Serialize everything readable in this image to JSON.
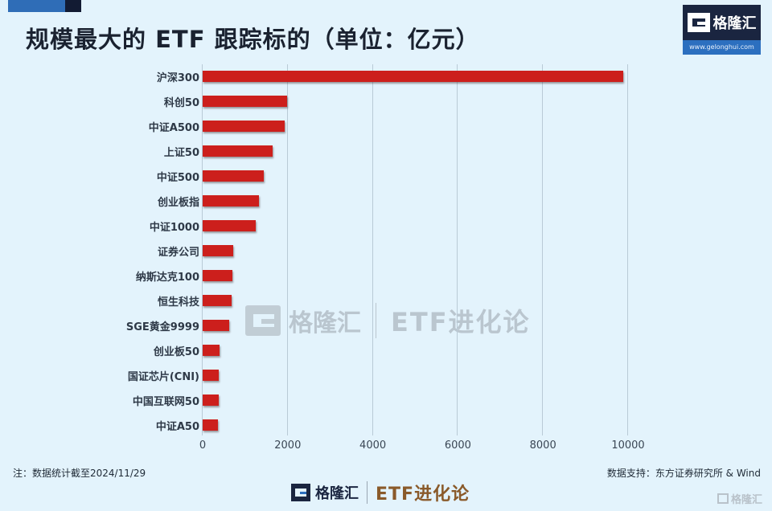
{
  "header": {
    "title": "规模最大的 ETF 跟踪标的（单位：亿元）",
    "logo_name": "格隆汇",
    "logo_url": "www.gelonghui.com"
  },
  "chart_data": {
    "type": "bar",
    "orientation": "horizontal",
    "title": "规模最大的 ETF 跟踪标的（单位：亿元）",
    "xlabel": "",
    "ylabel": "",
    "unit": "亿元",
    "xlim": [
      0,
      10000
    ],
    "xticks": [
      "0",
      "2000",
      "4000",
      "6000",
      "8000",
      "10000"
    ],
    "grid": true,
    "bar_color": "#cc1f1c",
    "categories": [
      "沪深300",
      "科创50",
      "中证A500",
      "上证50",
      "中证500",
      "创业板指",
      "中证1000",
      "证券公司",
      "纳斯达克100",
      "恒生科技",
      "SGE黄金9999",
      "创业板50",
      "国证芯片(CNI)",
      "中国互联网50",
      "中证A50"
    ],
    "values": [
      9890,
      1980,
      1920,
      1640,
      1430,
      1320,
      1250,
      720,
      700,
      680,
      620,
      400,
      380,
      380,
      360
    ]
  },
  "watermark": {
    "logo_name": "格隆汇",
    "logo_url": "www.gelonghui.com",
    "brand": "ETF进化论"
  },
  "footer": {
    "note": "注：数据统计截至2024/11/29",
    "source": "数据支持：东方证券研究所 & Wind",
    "logo_name": "格隆汇",
    "logo_url": "www.gelonghui.com",
    "brand": "ETF进化论",
    "corner_logo": "格隆汇"
  }
}
